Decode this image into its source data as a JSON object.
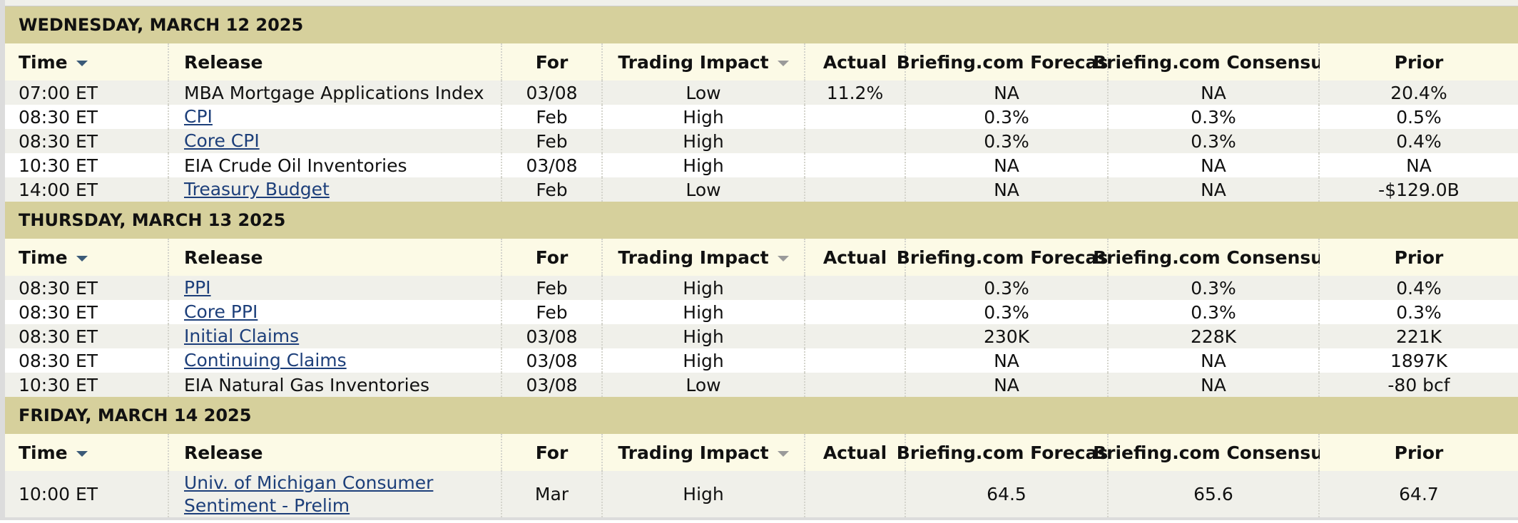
{
  "columns": [
    "Time",
    "Release",
    "For",
    "Trading Impact",
    "Actual",
    "Briefing.com Forecast",
    "Briefing.com Consensus",
    "Prior"
  ],
  "days": [
    {
      "title": "WEDNESDAY, MARCH 12 2025",
      "rows": [
        {
          "time": "07:00 ET",
          "release": "MBA Mortgage Applications Index",
          "link": false,
          "for": "03/08",
          "impact": "Low",
          "actual": "11.2%",
          "forecast": "NA",
          "consensus": "NA",
          "prior": "20.4%"
        },
        {
          "time": "08:30 ET",
          "release": "CPI",
          "link": true,
          "for": "Feb",
          "impact": "High",
          "actual": null,
          "forecast": "0.3%",
          "consensus": "0.3%",
          "prior": "0.5%"
        },
        {
          "time": "08:30 ET",
          "release": "Core CPI",
          "link": true,
          "for": "Feb",
          "impact": "High",
          "actual": null,
          "forecast": "0.3%",
          "consensus": "0.3%",
          "prior": "0.4%"
        },
        {
          "time": "10:30 ET",
          "release": "EIA Crude Oil Inventories",
          "link": false,
          "for": "03/08",
          "impact": "High",
          "actual": null,
          "forecast": "NA",
          "consensus": "NA",
          "prior": "NA"
        },
        {
          "time": "14:00 ET",
          "release": "Treasury Budget",
          "link": true,
          "for": "Feb",
          "impact": "Low",
          "actual": null,
          "forecast": "NA",
          "consensus": "NA",
          "prior": "-$129.0B"
        }
      ]
    },
    {
      "title": "THURSDAY, MARCH 13 2025",
      "rows": [
        {
          "time": "08:30 ET",
          "release": "PPI",
          "link": true,
          "for": "Feb",
          "impact": "High",
          "actual": null,
          "forecast": "0.3%",
          "consensus": "0.3%",
          "prior": "0.4%"
        },
        {
          "time": "08:30 ET",
          "release": "Core PPI",
          "link": true,
          "for": "Feb",
          "impact": "High",
          "actual": null,
          "forecast": "0.3%",
          "consensus": "0.3%",
          "prior": "0.3%"
        },
        {
          "time": "08:30 ET",
          "release": "Initial Claims",
          "link": true,
          "for": "03/08",
          "impact": "High",
          "actual": null,
          "forecast": "230K",
          "consensus": "228K",
          "prior": "221K"
        },
        {
          "time": "08:30 ET",
          "release": "Continuing Claims",
          "link": true,
          "for": "03/08",
          "impact": "High",
          "actual": null,
          "forecast": "NA",
          "consensus": "NA",
          "prior": "1897K"
        },
        {
          "time": "10:30 ET",
          "release": "EIA Natural Gas Inventories",
          "link": false,
          "for": "03/08",
          "impact": "Low",
          "actual": null,
          "forecast": "NA",
          "consensus": "NA",
          "prior": "-80 bcf"
        }
      ]
    },
    {
      "title": "FRIDAY, MARCH 14 2025",
      "rows": [
        {
          "time": "10:00 ET",
          "release": "Univ. of Michigan Consumer Sentiment - Prelim",
          "link": true,
          "for": "Mar",
          "impact": "High",
          "actual": null,
          "forecast": "64.5",
          "consensus": "65.6",
          "prior": "64.7"
        }
      ]
    }
  ]
}
